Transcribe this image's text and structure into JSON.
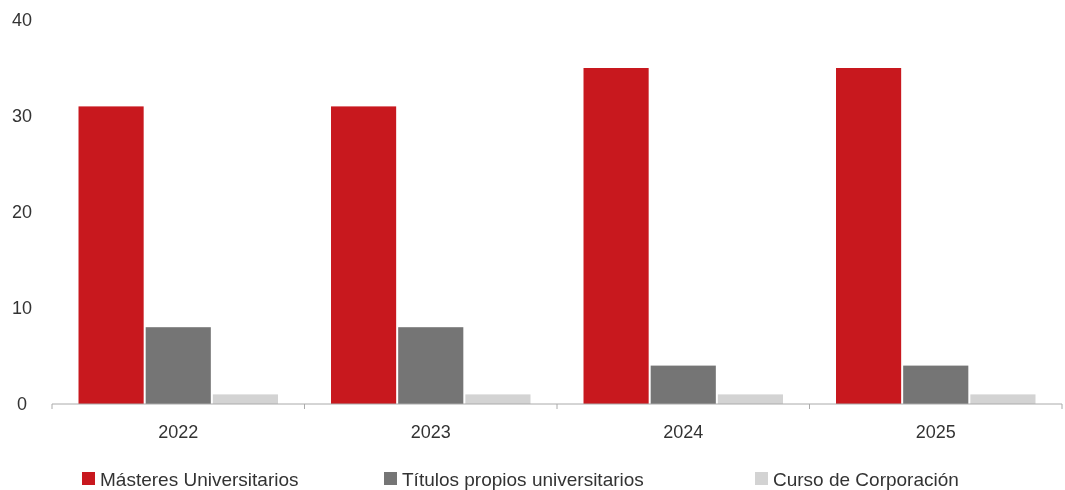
{
  "chart_data": {
    "type": "bar",
    "categories": [
      "2022",
      "2023",
      "2024",
      "2025"
    ],
    "series": [
      {
        "name": "Másteres Universitarios",
        "color": "#c8181e",
        "values": [
          31,
          31,
          35,
          35
        ]
      },
      {
        "name": "Títulos propios universitarios",
        "color": "#757575",
        "values": [
          8,
          8,
          4,
          4
        ]
      },
      {
        "name": "Curso de Corporación",
        "color": "#d3d3d3",
        "values": [
          1,
          1,
          1,
          1
        ]
      }
    ],
    "ylim": [
      0,
      40
    ],
    "yticks": [
      0,
      10,
      20,
      30,
      40
    ],
    "grid": false,
    "legend": "bottom"
  }
}
